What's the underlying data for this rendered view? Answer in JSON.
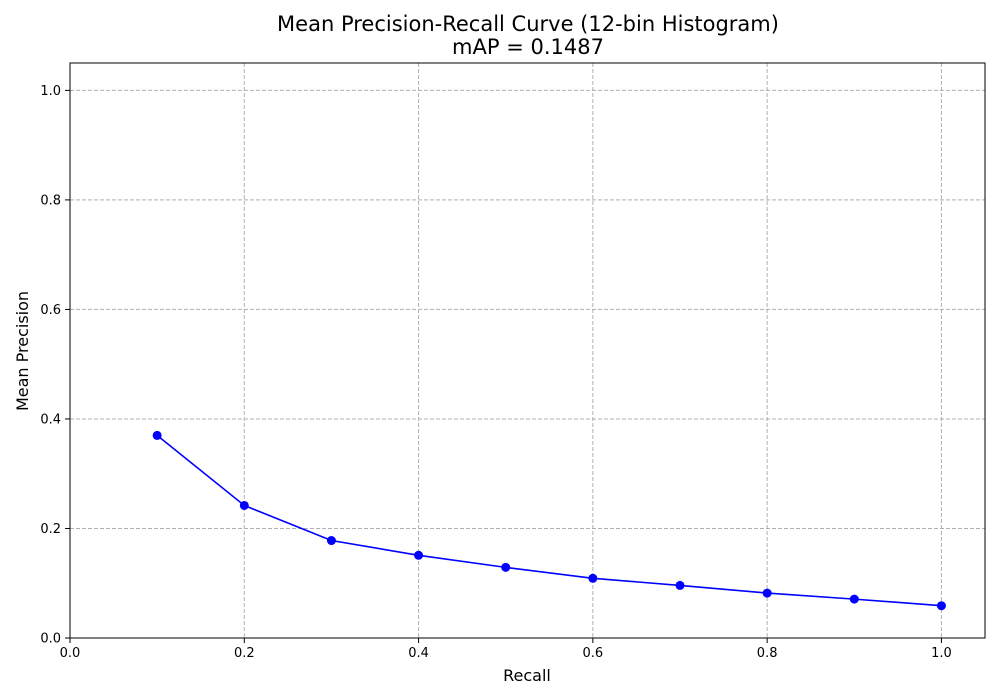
{
  "chart_data": {
    "type": "line",
    "title": "Mean Precision-Recall Curve (12-bin Histogram)",
    "subtitle": "mAP = 0.1487",
    "xlabel": "Recall",
    "ylabel": "Mean Precision",
    "xlim": [
      0.0,
      1.05
    ],
    "ylim": [
      0.0,
      1.05
    ],
    "xticks": [
      0.0,
      0.2,
      0.4,
      0.6,
      0.8,
      1.0
    ],
    "yticks": [
      0.0,
      0.2,
      0.4,
      0.6,
      0.8,
      1.0
    ],
    "xtick_labels": [
      "0.0",
      "0.2",
      "0.4",
      "0.6",
      "0.8",
      "1.0"
    ],
    "ytick_labels": [
      "0.0",
      "0.2",
      "0.4",
      "0.6",
      "0.8",
      "1.0"
    ],
    "grid": true,
    "series": [
      {
        "color": "#0000ff",
        "marker": "circle",
        "x": [
          0.1,
          0.2,
          0.3,
          0.4,
          0.5,
          0.6,
          0.7,
          0.8,
          0.9,
          1.0
        ],
        "y": [
          0.37,
          0.242,
          0.178,
          0.151,
          0.129,
          0.109,
          0.096,
          0.082,
          0.071,
          0.059
        ]
      }
    ]
  }
}
